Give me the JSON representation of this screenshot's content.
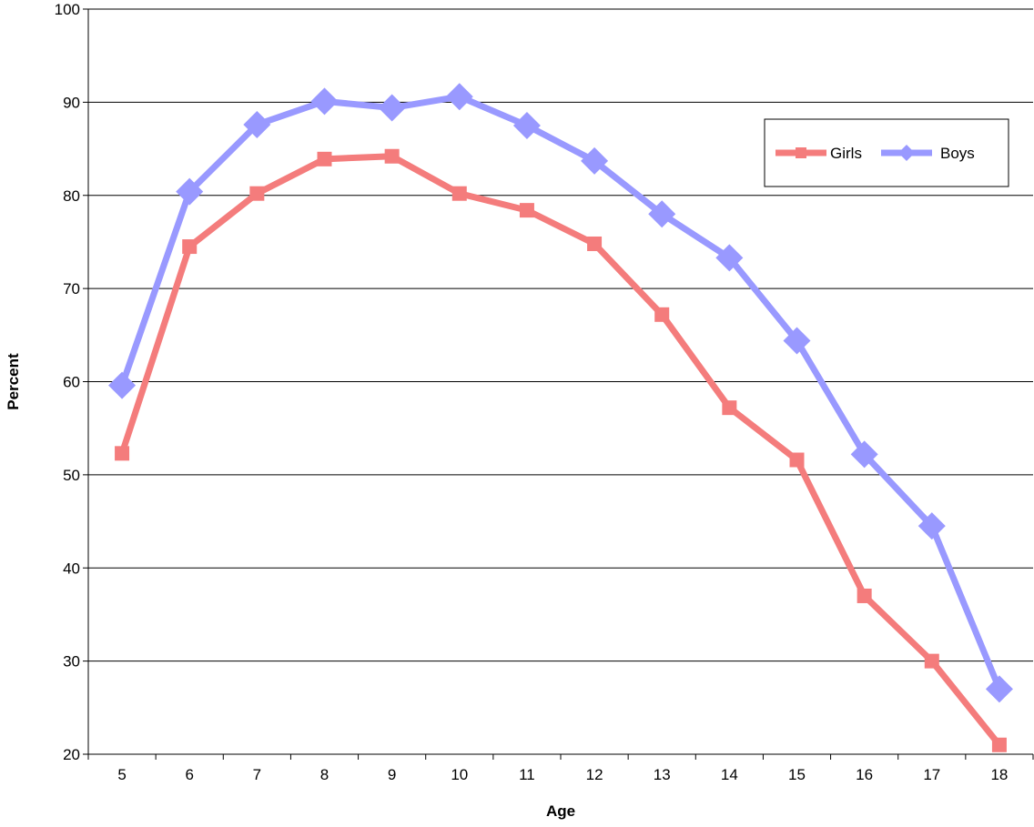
{
  "chart_data": {
    "type": "line",
    "title": "",
    "xlabel": "Age",
    "ylabel": "Percent",
    "categories": [
      "5",
      "6",
      "7",
      "8",
      "9",
      "10",
      "11",
      "12",
      "13",
      "14",
      "15",
      "16",
      "17",
      "18"
    ],
    "ylim": [
      20,
      100
    ],
    "yticks": [
      20,
      30,
      40,
      50,
      60,
      70,
      80,
      90,
      100
    ],
    "grid": "horizontal",
    "legend": "top-right",
    "series": [
      {
        "name": "Girls",
        "color": "#f47c7c",
        "marker": "square",
        "values": [
          52.3,
          74.5,
          80.2,
          83.9,
          84.2,
          80.2,
          78.4,
          74.8,
          67.2,
          57.2,
          51.6,
          37.0,
          30.0,
          21.0
        ]
      },
      {
        "name": "Boys",
        "color": "#9999ff",
        "marker": "diamond",
        "values": [
          59.6,
          80.4,
          87.6,
          90.1,
          89.4,
          90.6,
          87.5,
          83.7,
          78.0,
          73.3,
          64.4,
          52.2,
          44.5,
          27.0
        ]
      }
    ]
  }
}
